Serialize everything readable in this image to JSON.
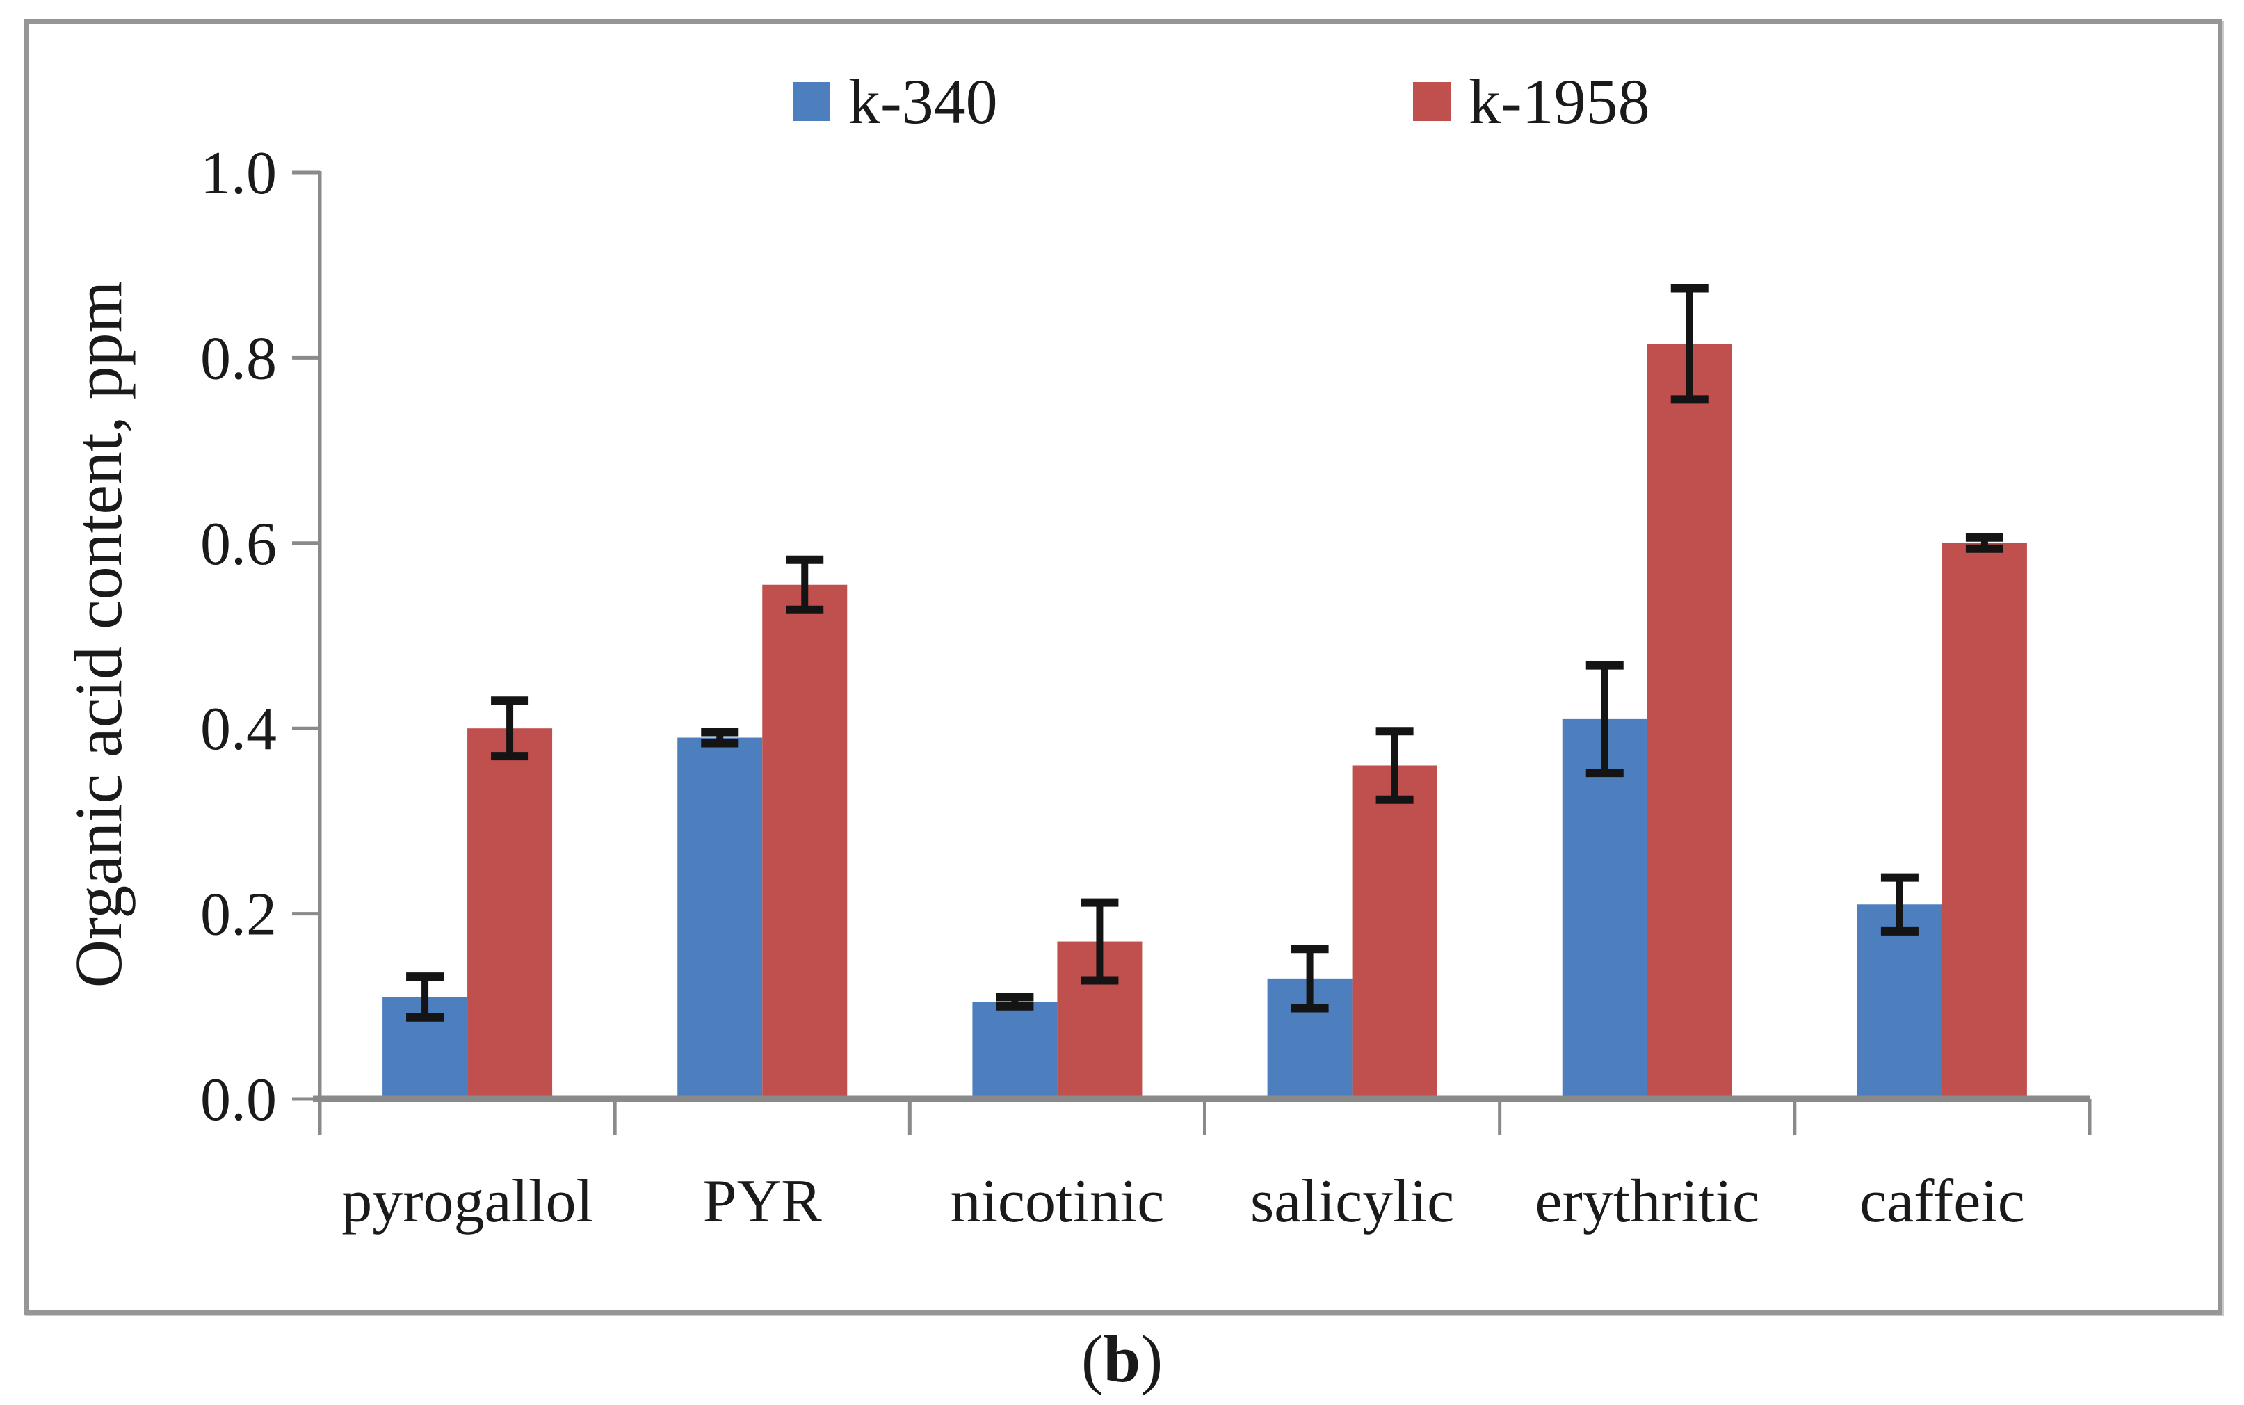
{
  "figure": {
    "caption": {
      "pre": "(",
      "bold": "b",
      "post": ")"
    }
  },
  "legend": {
    "items": [
      {
        "label": "k-340",
        "color": "#4D7EBE"
      },
      {
        "label": "k-1958",
        "color": "#C0504D"
      }
    ]
  },
  "chart_data": {
    "type": "bar",
    "title": "",
    "xlabel": "",
    "ylabel": "Organic acid content, ppm",
    "categories": [
      "pyrogallol",
      "PYR",
      "nicotinic",
      "salicylic",
      "erythritic",
      "caffeic"
    ],
    "series": [
      {
        "name": "k-340",
        "color": "#4D7EBE",
        "values": [
          0.11,
          0.39,
          0.105,
          0.13,
          0.41,
          0.21
        ],
        "errors": [
          0.022,
          0.006,
          0.005,
          0.032,
          0.058,
          0.029
        ]
      },
      {
        "name": "k-1958",
        "color": "#C0504D",
        "values": [
          0.4,
          0.555,
          0.17,
          0.36,
          0.815,
          0.6
        ],
        "errors": [
          0.03,
          0.027,
          0.042,
          0.037,
          0.06,
          0.006
        ]
      }
    ],
    "ylim": [
      0,
      1.0
    ],
    "ytick_values": [
      0.0,
      0.2,
      0.4,
      0.6,
      0.8,
      1.0
    ],
    "ytick_labels": [
      "0.0",
      "0.2",
      "0.4",
      "0.6",
      "0.8",
      "1.0"
    ],
    "grid": false,
    "legend_position": "top",
    "error_bar_color": "#141414",
    "axis_color": "#8a8a8a"
  }
}
